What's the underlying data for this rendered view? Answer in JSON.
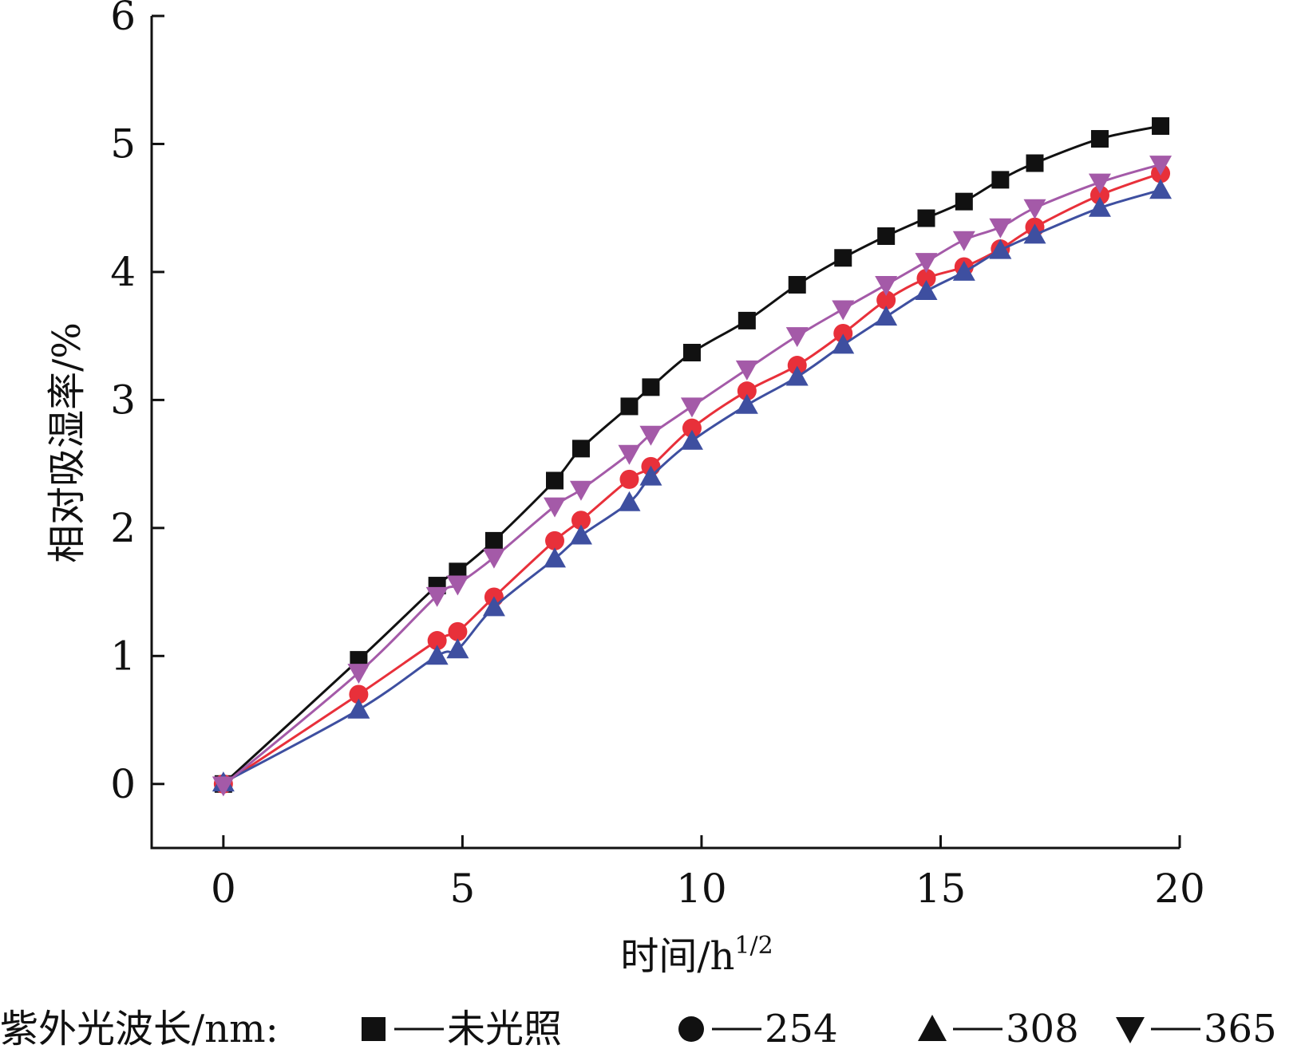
{
  "chart_data": {
    "type": "line",
    "title": "",
    "xlabel": "时间/h",
    "xlabel_sup": "1/2",
    "ylabel": "相对吸湿率/%",
    "xlim": [
      -1.5,
      20
    ],
    "ylim": [
      -0.5,
      6
    ],
    "xticks": [
      "0",
      "5",
      "10",
      "15",
      "20"
    ],
    "yticks": [
      "0",
      "1",
      "2",
      "3",
      "4",
      "5",
      "6"
    ],
    "grid": false,
    "legend_title": "紫外光波长/nm:",
    "legend_position": "bottom",
    "series": [
      {
        "name": "未光照",
        "marker": "square",
        "color": "#111111",
        "points": [
          [
            0,
            0
          ],
          [
            2.83,
            0.97
          ],
          [
            4.47,
            1.55
          ],
          [
            4.9,
            1.66
          ],
          [
            5.66,
            1.9
          ],
          [
            6.93,
            2.37
          ],
          [
            7.48,
            2.62
          ],
          [
            8.49,
            2.95
          ],
          [
            8.94,
            3.1
          ],
          [
            9.8,
            3.37
          ],
          [
            10.95,
            3.62
          ],
          [
            12.0,
            3.9
          ],
          [
            12.96,
            4.11
          ],
          [
            13.86,
            4.28
          ],
          [
            14.7,
            4.42
          ],
          [
            15.49,
            4.55
          ],
          [
            16.25,
            4.72
          ],
          [
            16.97,
            4.85
          ],
          [
            18.33,
            5.04
          ],
          [
            19.6,
            5.14
          ]
        ]
      },
      {
        "name": "254",
        "marker": "circle",
        "color": "#e8303a",
        "points": [
          [
            0,
            0
          ],
          [
            2.83,
            0.7
          ],
          [
            4.47,
            1.12
          ],
          [
            4.9,
            1.19
          ],
          [
            5.66,
            1.46
          ],
          [
            6.93,
            1.9
          ],
          [
            7.48,
            2.06
          ],
          [
            8.49,
            2.38
          ],
          [
            8.94,
            2.48
          ],
          [
            9.8,
            2.78
          ],
          [
            10.95,
            3.07
          ],
          [
            12.0,
            3.27
          ],
          [
            12.96,
            3.52
          ],
          [
            13.86,
            3.78
          ],
          [
            14.7,
            3.95
          ],
          [
            15.49,
            4.04
          ],
          [
            16.25,
            4.18
          ],
          [
            16.97,
            4.35
          ],
          [
            18.33,
            4.6
          ],
          [
            19.6,
            4.77
          ]
        ]
      },
      {
        "name": "308",
        "marker": "triangle-up",
        "color": "#3e4fa0",
        "points": [
          [
            0,
            0.01
          ],
          [
            2.83,
            0.58
          ],
          [
            4.47,
            1.0
          ],
          [
            4.9,
            1.05
          ],
          [
            5.66,
            1.38
          ],
          [
            6.93,
            1.76
          ],
          [
            7.48,
            1.94
          ],
          [
            8.49,
            2.2
          ],
          [
            8.94,
            2.4
          ],
          [
            9.8,
            2.68
          ],
          [
            10.95,
            2.96
          ],
          [
            12.0,
            3.18
          ],
          [
            12.96,
            3.43
          ],
          [
            13.86,
            3.65
          ],
          [
            14.7,
            3.85
          ],
          [
            15.49,
            4.0
          ],
          [
            16.25,
            4.17
          ],
          [
            16.97,
            4.29
          ],
          [
            18.33,
            4.5
          ],
          [
            19.6,
            4.64
          ]
        ]
      },
      {
        "name": "365",
        "marker": "triangle-down",
        "color": "#a45aa8",
        "points": [
          [
            0,
            -0.01
          ],
          [
            2.83,
            0.87
          ],
          [
            4.47,
            1.47
          ],
          [
            4.9,
            1.56
          ],
          [
            5.66,
            1.77
          ],
          [
            6.93,
            2.17
          ],
          [
            7.48,
            2.3
          ],
          [
            8.49,
            2.58
          ],
          [
            8.94,
            2.73
          ],
          [
            9.8,
            2.95
          ],
          [
            10.95,
            3.24
          ],
          [
            12.0,
            3.5
          ],
          [
            12.96,
            3.71
          ],
          [
            13.86,
            3.9
          ],
          [
            14.7,
            4.08
          ],
          [
            15.49,
            4.25
          ],
          [
            16.25,
            4.35
          ],
          [
            16.97,
            4.5
          ],
          [
            18.33,
            4.7
          ],
          [
            19.6,
            4.84
          ]
        ]
      }
    ]
  }
}
